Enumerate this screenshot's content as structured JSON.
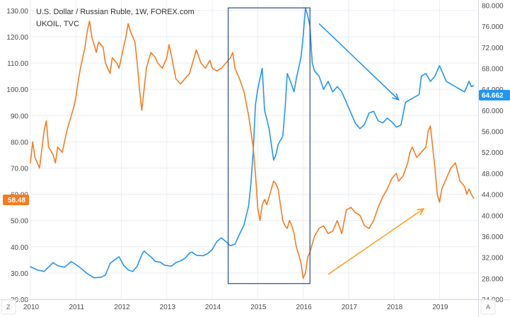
{
  "header": {
    "title": "U.S. Dollar / Russian Ruble, 1W, FOREX.com",
    "subtitle": "UKOIL, TVC"
  },
  "badges": {
    "left_value": "58.48",
    "right_value": "64.662"
  },
  "corner": {
    "left": "Z",
    "right": "A"
  },
  "colors": {
    "usdrub": "#2196f3",
    "ukoil": "#f57c1f",
    "left_badge": "#f57c1f",
    "right_badge": "#2196f3",
    "grid": "#e9eef3",
    "box": "#2a4a8a",
    "arrow_up": "#ff9f1c",
    "arrow_down": "#2196f3"
  },
  "chart_data": {
    "type": "line",
    "title": "U.S. Dollar / Russian Ruble, 1W, FOREX.com",
    "xlabel": "",
    "ylabel": "",
    "x_ticks": [
      "2010",
      "2011",
      "2012",
      "2013",
      "2014",
      "2015",
      "2016",
      "2017",
      "2018",
      "2019"
    ],
    "left_axis": {
      "ticks": [
        "130.00",
        "120.00",
        "110.00",
        "100.00",
        "90.00",
        "80.00",
        "70.00",
        "60.00",
        "50.00",
        "40.00",
        "30.00",
        "20.00"
      ],
      "range": [
        20,
        134
      ]
    },
    "right_axis": {
      "ticks": [
        "80.000",
        "76.000",
        "72.000",
        "68.000",
        "64.000",
        "60.000",
        "56.000",
        "52.000",
        "48.000",
        "44.000",
        "40.000",
        "36.000",
        "32.000",
        "28.000",
        "24.000"
      ],
      "range": [
        24,
        81
      ]
    },
    "x_range": [
      2010.0,
      2019.85
    ],
    "grid": true,
    "series": [
      {
        "name": "USD/RUB",
        "axis": "right",
        "points": [
          [
            2010.0,
            30.2
          ],
          [
            2010.15,
            29.6
          ],
          [
            2010.3,
            29.3
          ],
          [
            2010.5,
            31.0
          ],
          [
            2010.6,
            30.4
          ],
          [
            2010.75,
            30.1
          ],
          [
            2010.9,
            31.2
          ],
          [
            2011.0,
            30.6
          ],
          [
            2011.1,
            30.0
          ],
          [
            2011.25,
            28.9
          ],
          [
            2011.4,
            28.1
          ],
          [
            2011.55,
            28.2
          ],
          [
            2011.65,
            28.6
          ],
          [
            2011.75,
            30.8
          ],
          [
            2011.85,
            31.5
          ],
          [
            2011.95,
            32.1
          ],
          [
            2012.05,
            30.5
          ],
          [
            2012.15,
            29.6
          ],
          [
            2012.25,
            29.3
          ],
          [
            2012.35,
            30.3
          ],
          [
            2012.45,
            32.5
          ],
          [
            2012.5,
            33.2
          ],
          [
            2012.55,
            32.8
          ],
          [
            2012.65,
            32.1
          ],
          [
            2012.75,
            31.2
          ],
          [
            2012.85,
            31.1
          ],
          [
            2012.95,
            30.5
          ],
          [
            2013.1,
            30.3
          ],
          [
            2013.2,
            31.0
          ],
          [
            2013.3,
            31.3
          ],
          [
            2013.4,
            31.8
          ],
          [
            2013.5,
            32.8
          ],
          [
            2013.55,
            33.0
          ],
          [
            2013.65,
            32.4
          ],
          [
            2013.8,
            32.3
          ],
          [
            2013.9,
            32.7
          ],
          [
            2014.0,
            33.5
          ],
          [
            2014.1,
            35.0
          ],
          [
            2014.2,
            35.7
          ],
          [
            2014.3,
            35.0
          ],
          [
            2014.4,
            34.2
          ],
          [
            2014.5,
            34.5
          ],
          [
            2014.6,
            36.4
          ],
          [
            2014.7,
            38.2
          ],
          [
            2014.8,
            41.8
          ],
          [
            2014.85,
            46.0
          ],
          [
            2014.9,
            52.0
          ],
          [
            2014.95,
            61.0
          ],
          [
            2015.0,
            64.0
          ],
          [
            2015.05,
            66.0
          ],
          [
            2015.1,
            68.0
          ],
          [
            2015.15,
            60.0
          ],
          [
            2015.25,
            56.5
          ],
          [
            2015.3,
            53.5
          ],
          [
            2015.35,
            50.5
          ],
          [
            2015.4,
            51.5
          ],
          [
            2015.45,
            53.5
          ],
          [
            2015.55,
            55.0
          ],
          [
            2015.6,
            60.0
          ],
          [
            2015.65,
            67.0
          ],
          [
            2015.7,
            66.0
          ],
          [
            2015.8,
            63.5
          ],
          [
            2015.85,
            66.0
          ],
          [
            2015.95,
            70.0
          ],
          [
            2016.0,
            74.0
          ],
          [
            2016.05,
            79.5
          ],
          [
            2016.1,
            78.0
          ],
          [
            2016.15,
            76.0
          ],
          [
            2016.2,
            69.0
          ],
          [
            2016.25,
            67.5
          ],
          [
            2016.35,
            66.5
          ],
          [
            2016.45,
            64.0
          ],
          [
            2016.55,
            65.5
          ],
          [
            2016.65,
            63.5
          ],
          [
            2016.75,
            64.5
          ],
          [
            2016.85,
            63.5
          ],
          [
            2016.95,
            61.5
          ],
          [
            2017.05,
            59.5
          ],
          [
            2017.15,
            57.5
          ],
          [
            2017.25,
            56.5
          ],
          [
            2017.35,
            57.3
          ],
          [
            2017.45,
            59.5
          ],
          [
            2017.55,
            59.8
          ],
          [
            2017.65,
            58.0
          ],
          [
            2017.75,
            57.6
          ],
          [
            2017.85,
            58.5
          ],
          [
            2017.95,
            57.8
          ],
          [
            2018.05,
            56.8
          ],
          [
            2018.15,
            57.2
          ],
          [
            2018.25,
            61.5
          ],
          [
            2018.35,
            62.0
          ],
          [
            2018.45,
            62.5
          ],
          [
            2018.55,
            63.0
          ],
          [
            2018.6,
            66.5
          ],
          [
            2018.7,
            67.0
          ],
          [
            2018.8,
            65.5
          ],
          [
            2018.9,
            66.5
          ],
          [
            2019.0,
            68.5
          ],
          [
            2019.05,
            67.5
          ],
          [
            2019.15,
            65.5
          ],
          [
            2019.25,
            65.0
          ],
          [
            2019.35,
            64.5
          ],
          [
            2019.45,
            64.0
          ],
          [
            2019.55,
            63.5
          ],
          [
            2019.65,
            65.5
          ],
          [
            2019.7,
            64.5
          ],
          [
            2019.75,
            64.7
          ]
        ]
      },
      {
        "name": "UKOIL",
        "axis": "left",
        "points": [
          [
            2010.0,
            72
          ],
          [
            2010.05,
            80
          ],
          [
            2010.1,
            74
          ],
          [
            2010.2,
            70
          ],
          [
            2010.3,
            84
          ],
          [
            2010.35,
            88
          ],
          [
            2010.4,
            78
          ],
          [
            2010.5,
            75
          ],
          [
            2010.55,
            72
          ],
          [
            2010.6,
            78
          ],
          [
            2010.7,
            76
          ],
          [
            2010.8,
            84
          ],
          [
            2010.9,
            90
          ],
          [
            2010.95,
            93
          ],
          [
            2011.0,
            97
          ],
          [
            2011.05,
            103
          ],
          [
            2011.1,
            108
          ],
          [
            2011.2,
            116
          ],
          [
            2011.25,
            122
          ],
          [
            2011.3,
            126
          ],
          [
            2011.35,
            120
          ],
          [
            2011.45,
            114
          ],
          [
            2011.5,
            118
          ],
          [
            2011.6,
            116
          ],
          [
            2011.65,
            110
          ],
          [
            2011.75,
            106
          ],
          [
            2011.8,
            112
          ],
          [
            2011.9,
            110
          ],
          [
            2011.95,
            108
          ],
          [
            2012.0,
            112
          ],
          [
            2012.1,
            120
          ],
          [
            2012.15,
            125
          ],
          [
            2012.2,
            122
          ],
          [
            2012.3,
            118
          ],
          [
            2012.35,
            110
          ],
          [
            2012.4,
            100
          ],
          [
            2012.45,
            92
          ],
          [
            2012.5,
            100
          ],
          [
            2012.55,
            108
          ],
          [
            2012.65,
            114
          ],
          [
            2012.75,
            112
          ],
          [
            2012.8,
            110
          ],
          [
            2012.9,
            108
          ],
          [
            2013.0,
            112
          ],
          [
            2013.05,
            117
          ],
          [
            2013.1,
            113
          ],
          [
            2013.2,
            104
          ],
          [
            2013.3,
            102
          ],
          [
            2013.4,
            104
          ],
          [
            2013.5,
            106
          ],
          [
            2013.6,
            112
          ],
          [
            2013.65,
            115
          ],
          [
            2013.75,
            110
          ],
          [
            2013.85,
            108
          ],
          [
            2013.95,
            111
          ],
          [
            2014.0,
            108
          ],
          [
            2014.1,
            107
          ],
          [
            2014.2,
            108
          ],
          [
            2014.3,
            110
          ],
          [
            2014.4,
            112
          ],
          [
            2014.45,
            114
          ],
          [
            2014.5,
            108
          ],
          [
            2014.6,
            104
          ],
          [
            2014.7,
            99
          ],
          [
            2014.8,
            90
          ],
          [
            2014.85,
            84
          ],
          [
            2014.9,
            78
          ],
          [
            2014.95,
            68
          ],
          [
            2015.0,
            55
          ],
          [
            2015.05,
            50
          ],
          [
            2015.1,
            56
          ],
          [
            2015.15,
            58
          ],
          [
            2015.2,
            56
          ],
          [
            2015.3,
            62
          ],
          [
            2015.35,
            65
          ],
          [
            2015.4,
            64
          ],
          [
            2015.45,
            62
          ],
          [
            2015.5,
            56
          ],
          [
            2015.55,
            50
          ],
          [
            2015.6,
            48
          ],
          [
            2015.65,
            47
          ],
          [
            2015.7,
            50
          ],
          [
            2015.75,
            48
          ],
          [
            2015.8,
            45
          ],
          [
            2015.85,
            40
          ],
          [
            2015.9,
            37
          ],
          [
            2015.95,
            34
          ],
          [
            2016.0,
            28
          ],
          [
            2016.05,
            30
          ],
          [
            2016.1,
            36
          ],
          [
            2016.15,
            38
          ],
          [
            2016.25,
            44
          ],
          [
            2016.35,
            47
          ],
          [
            2016.45,
            48
          ],
          [
            2016.55,
            45
          ],
          [
            2016.65,
            46
          ],
          [
            2016.75,
            50
          ],
          [
            2016.85,
            45
          ],
          [
            2016.95,
            54
          ],
          [
            2017.05,
            55
          ],
          [
            2017.15,
            53
          ],
          [
            2017.25,
            52
          ],
          [
            2017.35,
            48
          ],
          [
            2017.45,
            47
          ],
          [
            2017.55,
            50
          ],
          [
            2017.65,
            55
          ],
          [
            2017.75,
            59
          ],
          [
            2017.85,
            62
          ],
          [
            2017.95,
            66
          ],
          [
            2018.05,
            68
          ],
          [
            2018.1,
            65
          ],
          [
            2018.2,
            67
          ],
          [
            2018.3,
            72
          ],
          [
            2018.35,
            76
          ],
          [
            2018.4,
            78
          ],
          [
            2018.5,
            74
          ],
          [
            2018.6,
            76
          ],
          [
            2018.7,
            78
          ],
          [
            2018.75,
            84
          ],
          [
            2018.8,
            86
          ],
          [
            2018.85,
            78
          ],
          [
            2018.9,
            70
          ],
          [
            2018.95,
            60
          ],
          [
            2019.0,
            57
          ],
          [
            2019.05,
            62
          ],
          [
            2019.15,
            66
          ],
          [
            2019.25,
            70
          ],
          [
            2019.35,
            72
          ],
          [
            2019.45,
            65
          ],
          [
            2019.55,
            63
          ],
          [
            2019.6,
            60
          ],
          [
            2019.65,
            62
          ],
          [
            2019.7,
            60
          ],
          [
            2019.75,
            58.5
          ]
        ]
      }
    ],
    "annotations": [
      {
        "type": "rectangle",
        "x_range": [
          2014.35,
          2016.15
        ],
        "y_left_range": [
          26,
          131
        ]
      },
      {
        "type": "arrow",
        "color_key": "arrow_down",
        "from": [
          2016.35,
          76.5
        ],
        "to": [
          2018.1,
          62.0
        ],
        "axis": "right"
      },
      {
        "type": "arrow",
        "color_key": "arrow_up",
        "from": [
          2016.55,
          29.5
        ],
        "to": [
          2018.65,
          54.5
        ],
        "axis": "left"
      }
    ]
  }
}
